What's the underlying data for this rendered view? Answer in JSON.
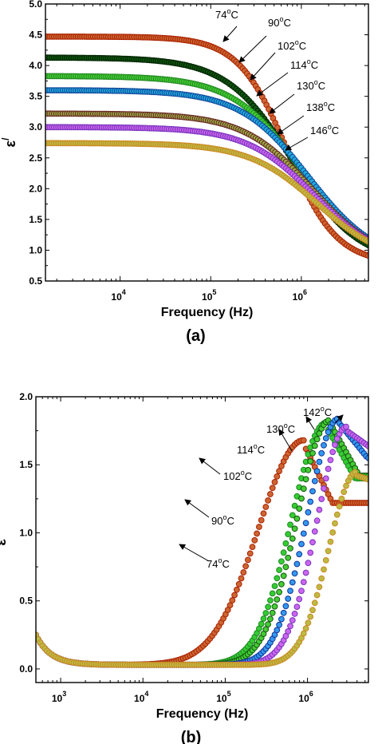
{
  "chart_data": [
    {
      "type": "scatter",
      "panel_label": "(a)",
      "xlabel": "Frequency (Hz)",
      "ylabel": "ε",
      "ylabel_sup": "/",
      "xscale": "log",
      "xlim": [
        1500,
        5500000
      ],
      "ylim": [
        0.5,
        5.0
      ],
      "yticks": [
        "0.5",
        "1.0",
        "1.5",
        "2.0",
        "2.5",
        "3.0",
        "3.5",
        "4.0",
        "4.5",
        "5.0"
      ],
      "xticks": [
        {
          "value": 10000,
          "base": "10",
          "exp": "4"
        },
        {
          "value": 100000,
          "base": "10",
          "exp": "5"
        },
        {
          "value": 1000000,
          "base": "10",
          "exp": "6"
        }
      ],
      "series": [
        {
          "name": "74°C",
          "face": "#cc6633",
          "edge": "#aa2200",
          "plateau": 4.47,
          "fc": 700000,
          "m": 1.6,
          "f_end": 5000000
        },
        {
          "name": "90°C",
          "face": "#115511",
          "edge": "#002200",
          "plateau": 4.13,
          "fc": 800000,
          "m": 1.2,
          "f_end": 5000000
        },
        {
          "name": "102°C",
          "face": "#44cc33",
          "edge": "#228822",
          "plateau": 3.83,
          "fc": 1000000,
          "m": 1.15,
          "f_end": 5000000
        },
        {
          "name": "114°C",
          "face": "#22aadd",
          "edge": "#114499",
          "plateau": 3.6,
          "fc": 1200000,
          "m": 1.15,
          "f_end": 5000000
        },
        {
          "name": "130°C",
          "face": "#99aa44",
          "edge": "#662222",
          "plateau": 3.22,
          "fc": 1300000,
          "m": 1.15,
          "f_end": 5000000
        },
        {
          "name": "138°C",
          "face": "#cc66ee",
          "edge": "#7733bb",
          "plateau": 3.0,
          "fc": 1400000,
          "m": 1.15,
          "f_end": 5000000
        },
        {
          "name": "146°C",
          "face": "#bbbb44",
          "edge": "#cc8822",
          "plateau": 2.74,
          "fc": 1500000,
          "m": 1.15,
          "f_end": 5000000
        }
      ],
      "annotations": [
        "74°C",
        "90°C",
        "102°C",
        "114°C",
        "130°C",
        "138°C",
        "146°C"
      ]
    },
    {
      "type": "scatter",
      "panel_label": "(b)",
      "xlabel": "Frequency (Hz)",
      "ylabel": "ε",
      "ylabel_sup": "//",
      "xscale": "log",
      "xlim": [
        500,
        5500000
      ],
      "ylim": [
        -0.1,
        2.0
      ],
      "yticks": [
        "0.0",
        "0.5",
        "1.0",
        "1.5",
        "2.0"
      ],
      "xticks": [
        {
          "value": 1000,
          "base": "10",
          "exp": "3"
        },
        {
          "value": 10000,
          "base": "10",
          "exp": "4"
        },
        {
          "value": 100000,
          "base": "10",
          "exp": "5"
        },
        {
          "value": 1000000,
          "base": "10",
          "exp": "6"
        }
      ],
      "series": [
        {
          "name": "74°C",
          "face": "#cc6633",
          "edge": "#aa2200",
          "peak_f": 900000,
          "peak": 1.65,
          "w": 0.55,
          "tail": 1.22
        },
        {
          "name": "90°C",
          "face": "#33cc33",
          "edge": "#228822",
          "peak_f": 1700000,
          "peak": 1.78,
          "w": 0.42,
          "tail": 1.4
        },
        {
          "name": "102°C",
          "face": "#44cc33",
          "edge": "#115511",
          "peak_f": 1900000,
          "peak": 1.8,
          "w": 0.4,
          "tail": 1.42
        },
        {
          "name": "114°C",
          "face": "#3399ee",
          "edge": "#113399",
          "peak_f": 2400000,
          "peak": 1.81,
          "w": 0.38,
          "tail": 1.55
        },
        {
          "name": "130°C",
          "face": "#cc66ee",
          "edge": "#7733bb",
          "peak_f": 3000000,
          "peak": 1.75,
          "w": 0.36,
          "tail": 1.6
        },
        {
          "name": "142°C",
          "face": "#bbbb44",
          "edge": "#cc8822",
          "peak_f": 4000000,
          "peak": 1.42,
          "w": 0.34,
          "tail": 1.35
        }
      ],
      "annotations": [
        "74°C",
        "90°C",
        "102°C",
        "114°C",
        "130°C",
        "142°C"
      ]
    }
  ]
}
